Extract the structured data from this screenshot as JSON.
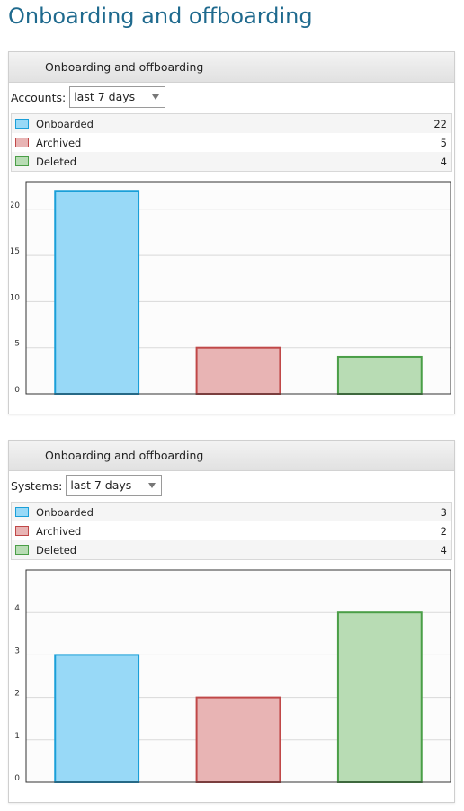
{
  "page": {
    "title": "Onboarding and offboarding"
  },
  "panels": [
    {
      "title": "Onboarding and offboarding",
      "filter_label": "Accounts:",
      "filter_value": "last 7 days"
    },
    {
      "title": "Onboarding and offboarding",
      "filter_label": "Systems:",
      "filter_value": "last 7 days"
    }
  ],
  "colors": {
    "onboarded_fill": "#98d9f7",
    "onboarded_stroke": "#1a9fd8",
    "archived_fill": "#e8b4b4",
    "archived_stroke": "#c04848",
    "deleted_fill": "#b8dcb4",
    "deleted_stroke": "#4a9e47"
  },
  "chart_data": [
    {
      "type": "bar",
      "categories": [
        "Onboarded",
        "Archived",
        "Deleted"
      ],
      "values": [
        22,
        5,
        4
      ],
      "ylim": [
        0,
        23
      ],
      "yticks": [
        0,
        5,
        10,
        15,
        20
      ],
      "grid": true,
      "legend": "top"
    },
    {
      "type": "bar",
      "categories": [
        "Onboarded",
        "Archived",
        "Deleted"
      ],
      "values": [
        3,
        2,
        4
      ],
      "ylim": [
        0,
        5
      ],
      "yticks": [
        0,
        1,
        2,
        3,
        4,
        5
      ],
      "grid": true,
      "legend": "top"
    }
  ]
}
